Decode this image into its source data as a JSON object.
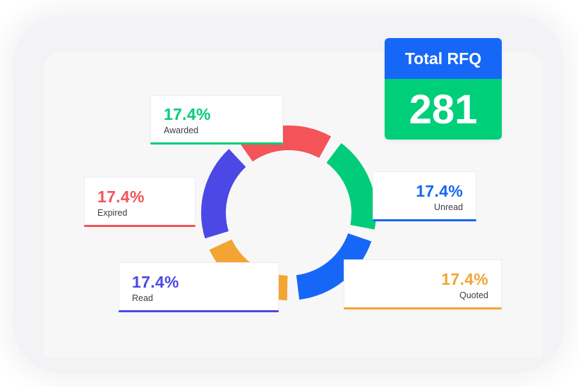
{
  "chart_data": {
    "type": "pie",
    "variant": "donut",
    "categories": [
      "Awarded",
      "Unread",
      "Quoted",
      "Read",
      "Expired"
    ],
    "values": [
      17.4,
      17.4,
      17.4,
      17.4,
      17.4
    ],
    "value_labels": [
      "17.4%",
      "17.4%",
      "17.4%",
      "17.4%",
      "17.4%"
    ],
    "colors": [
      "#00cc79",
      "#1667f7",
      "#f2a533",
      "#4b48e5",
      "#f45358"
    ]
  },
  "labels": {
    "awarded": {
      "pct": "17.4%",
      "name": "Awarded",
      "color": "#00cc79"
    },
    "unread": {
      "pct": "17.4%",
      "name": "Unread",
      "color": "#1667f7"
    },
    "quoted": {
      "pct": "17.4%",
      "name": "Quoted",
      "color": "#f2a533"
    },
    "read": {
      "pct": "17.4%",
      "name": "Read",
      "color": "#4b48e5"
    },
    "expired": {
      "pct": "17.4%",
      "name": "Expired",
      "color": "#f45358"
    }
  },
  "total": {
    "title": "Total RFQ",
    "value": "281"
  }
}
